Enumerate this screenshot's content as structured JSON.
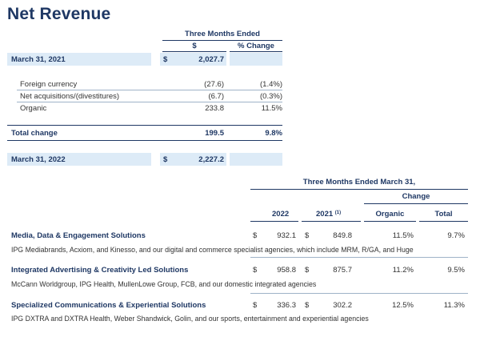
{
  "title": "Net Revenue",
  "top_table": {
    "group_header": "Three Months Ended",
    "col_dollar": "$",
    "col_change": "% Change",
    "start_row": {
      "label": "March 31, 2021",
      "currency": "$",
      "value": "2,027.7"
    },
    "rows": [
      {
        "label": "Foreign currency",
        "value": "(27.6)",
        "change": "(1.4%)"
      },
      {
        "label": "Net acquisitions/(divestitures)",
        "value": "(6.7)",
        "change": "(0.3%)"
      },
      {
        "label": "Organic",
        "value": "233.8",
        "change": "11.5%"
      }
    ],
    "total_row": {
      "label": "Total change",
      "value": "199.5",
      "change": "9.8%"
    },
    "end_row": {
      "label": "March 31, 2022",
      "currency": "$",
      "value": "2,227.2"
    }
  },
  "bottom_table": {
    "group_header": "Three Months Ended March 31,",
    "change_header": "Change",
    "col_2022": "2022",
    "col_2021": "2021",
    "col_2021_note": "(1)",
    "col_organic": "Organic",
    "col_total": "Total",
    "segments": [
      {
        "name": "Media, Data & Engagement Solutions",
        "currency_2022": "$",
        "value_2022": "932.1",
        "currency_2021": "$",
        "value_2021": "849.8",
        "organic": "11.5%",
        "total": "9.7%",
        "description": "IPG Mediabrands, Acxiom, and Kinesso, and our digital and commerce specialist agencies, which include MRM, R/GA, and Huge"
      },
      {
        "name": "Integrated Advertising & Creativity Led Solutions",
        "currency_2022": "$",
        "value_2022": "958.8",
        "currency_2021": "$",
        "value_2021": "875.7",
        "organic": "11.2%",
        "total": "9.5%",
        "description": "McCann Worldgroup, IPG Health, MullenLowe Group, FCB, and our domestic integrated agencies"
      },
      {
        "name": "Specialized Communications & Experiential Solutions",
        "currency_2022": "$",
        "value_2022": "336.3",
        "currency_2021": "$",
        "value_2021": "302.2",
        "organic": "12.5%",
        "total": "11.3%",
        "description": "IPG DXTRA and DXTRA Health, Weber Shandwick, Golin, and our sports, entertainment and experiential agencies"
      }
    ]
  },
  "colors": {
    "navy": "#1f3864",
    "band": "#ddebf7",
    "text": "#333333"
  }
}
